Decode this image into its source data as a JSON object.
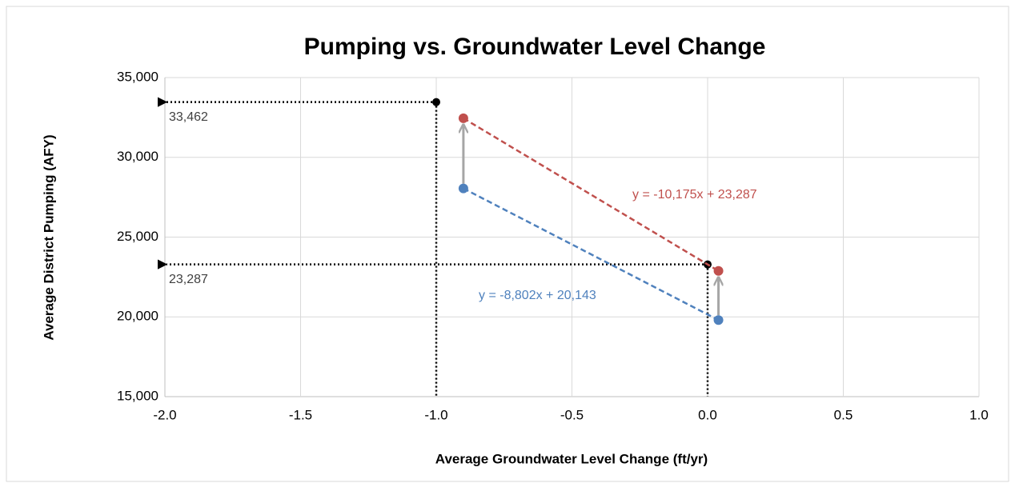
{
  "chart_data": {
    "type": "scatter",
    "title": "Pumping vs. Groundwater Level Change",
    "x_label": "Average Groundwater Level Change (ft/yr)",
    "y_label": "Average District Pumping (AFY)",
    "xlim": [
      -2,
      1
    ],
    "xticks": [
      {
        "value": -2,
        "label": "-2.0"
      },
      {
        "value": -1.5,
        "label": "-1.5"
      },
      {
        "value": -1,
        "label": "-1.0"
      },
      {
        "value": -0.5,
        "label": "-0.5"
      },
      {
        "value": 0,
        "label": "0.0"
      },
      {
        "value": 0.5,
        "label": "0.5"
      },
      {
        "value": 1,
        "label": "1.0"
      }
    ],
    "ylim": [
      15000,
      35000
    ],
    "yticks": [
      {
        "value": 15000,
        "label": "15,000"
      },
      {
        "value": 20000,
        "label": "20,000"
      },
      {
        "value": 25000,
        "label": "25,000"
      },
      {
        "value": 30000,
        "label": "30,000"
      },
      {
        "value": 35000,
        "label": "35,000"
      }
    ],
    "grid": true,
    "series": [
      {
        "color": "#4f81bd",
        "x": [
          -0.9,
          0.04
        ],
        "values": [
          28050,
          19800
        ],
        "trendline_label": "y = -8,802x + 20,143"
      },
      {
        "color": "#c0504d",
        "x": [
          -0.9,
          0.04
        ],
        "values": [
          32450,
          22880
        ],
        "trendline_label": "y = -10,175x + 23,287"
      }
    ],
    "reference_points": [
      {
        "x": -1,
        "y": 33462,
        "label": "33,462"
      },
      {
        "x": 0,
        "y": 23287,
        "label": "23,287"
      }
    ]
  }
}
